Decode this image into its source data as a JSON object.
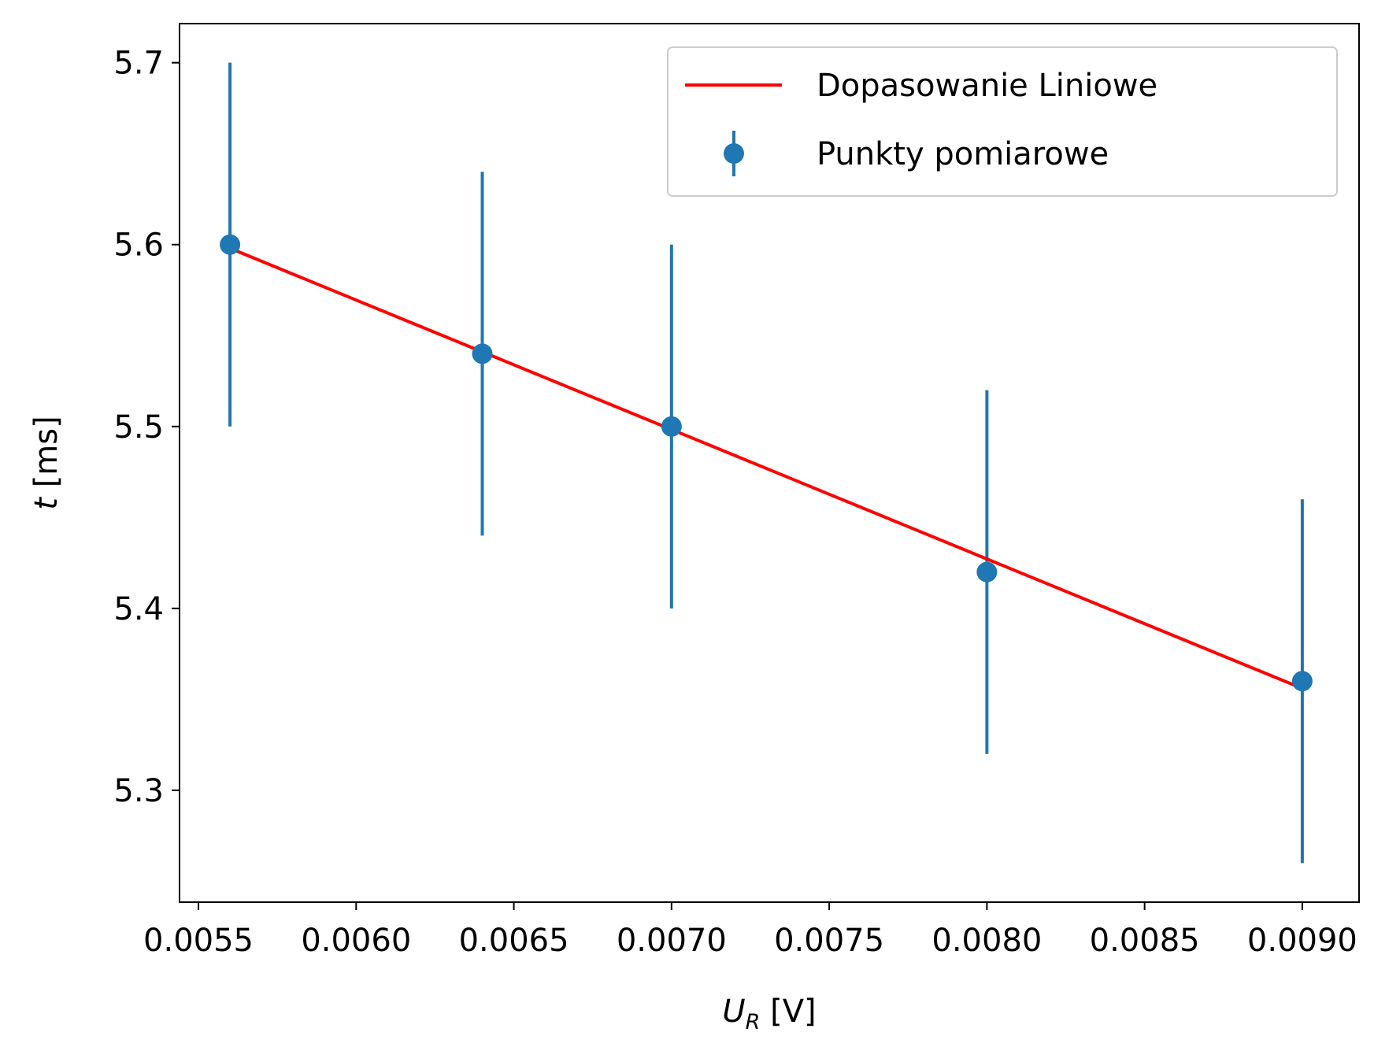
{
  "chart_data": {
    "type": "scatter",
    "xlabel": {
      "base": "U",
      "subscript": "R",
      "unit": " [V]"
    },
    "ylabel": {
      "symbol": "t",
      "unit": " [ms]"
    },
    "xlim": [
      0.00544,
      0.00918
    ],
    "ylim": [
      5.2385,
      5.7215
    ],
    "x_ticks": [
      {
        "value": 0.0055,
        "label": "0.0055"
      },
      {
        "value": 0.006,
        "label": "0.0060"
      },
      {
        "value": 0.0065,
        "label": "0.0065"
      },
      {
        "value": 0.007,
        "label": "0.0070"
      },
      {
        "value": 0.0075,
        "label": "0.0075"
      },
      {
        "value": 0.008,
        "label": "0.0080"
      },
      {
        "value": 0.0085,
        "label": "0.0085"
      },
      {
        "value": 0.009,
        "label": "0.0090"
      }
    ],
    "y_ticks": [
      {
        "value": 5.3,
        "label": "5.3"
      },
      {
        "value": 5.4,
        "label": "5.4"
      },
      {
        "value": 5.5,
        "label": "5.5"
      },
      {
        "value": 5.6,
        "label": "5.6"
      },
      {
        "value": 5.7,
        "label": "5.7"
      }
    ],
    "grid": false,
    "legend": {
      "placement": "top-right",
      "entries": [
        "Dopasowanie Liniowe",
        "Punkty pomiarowe"
      ]
    },
    "series": [
      {
        "name": "Punkty pomiarowe",
        "kind": "errorbar",
        "color": "#1f77b4",
        "x": [
          0.0056,
          0.0064,
          0.007,
          0.008,
          0.009
        ],
        "y": [
          5.6,
          5.54,
          5.5,
          5.42,
          5.36
        ],
        "yerr": [
          0.1,
          0.1,
          0.1,
          0.1,
          0.1
        ]
      },
      {
        "name": "Dopasowanie Liniowe",
        "kind": "line",
        "color": "#ff0000",
        "x": [
          0.0056,
          0.009
        ],
        "y": [
          5.598,
          5.356
        ]
      }
    ]
  }
}
